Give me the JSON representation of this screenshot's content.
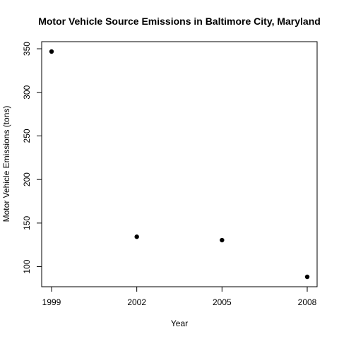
{
  "chart_data": {
    "type": "scatter",
    "title": "Motor Vehicle Source Emissions in Baltimore City, Maryland",
    "xlabel": "Year",
    "ylabel": "Motor Vehicle Emissions (tons)",
    "x": [
      1999,
      2002,
      2005,
      2008
    ],
    "y": [
      346.8,
      134.3,
      130.4,
      88.3
    ],
    "xlim": [
      1999,
      2008
    ],
    "ylim": [
      88.3,
      346.8
    ],
    "x_ticks": [
      1999,
      2002,
      2005,
      2008
    ],
    "x_tick_labels": [
      "1999",
      "2002",
      "2005",
      "2008"
    ],
    "y_ticks": [
      100,
      150,
      200,
      250,
      300,
      350
    ],
    "y_tick_labels": [
      "100",
      "150",
      "200",
      "250",
      "300",
      "350"
    ],
    "grid": false,
    "legend": false,
    "marker": "filled-circle",
    "point_color": "#000000"
  }
}
